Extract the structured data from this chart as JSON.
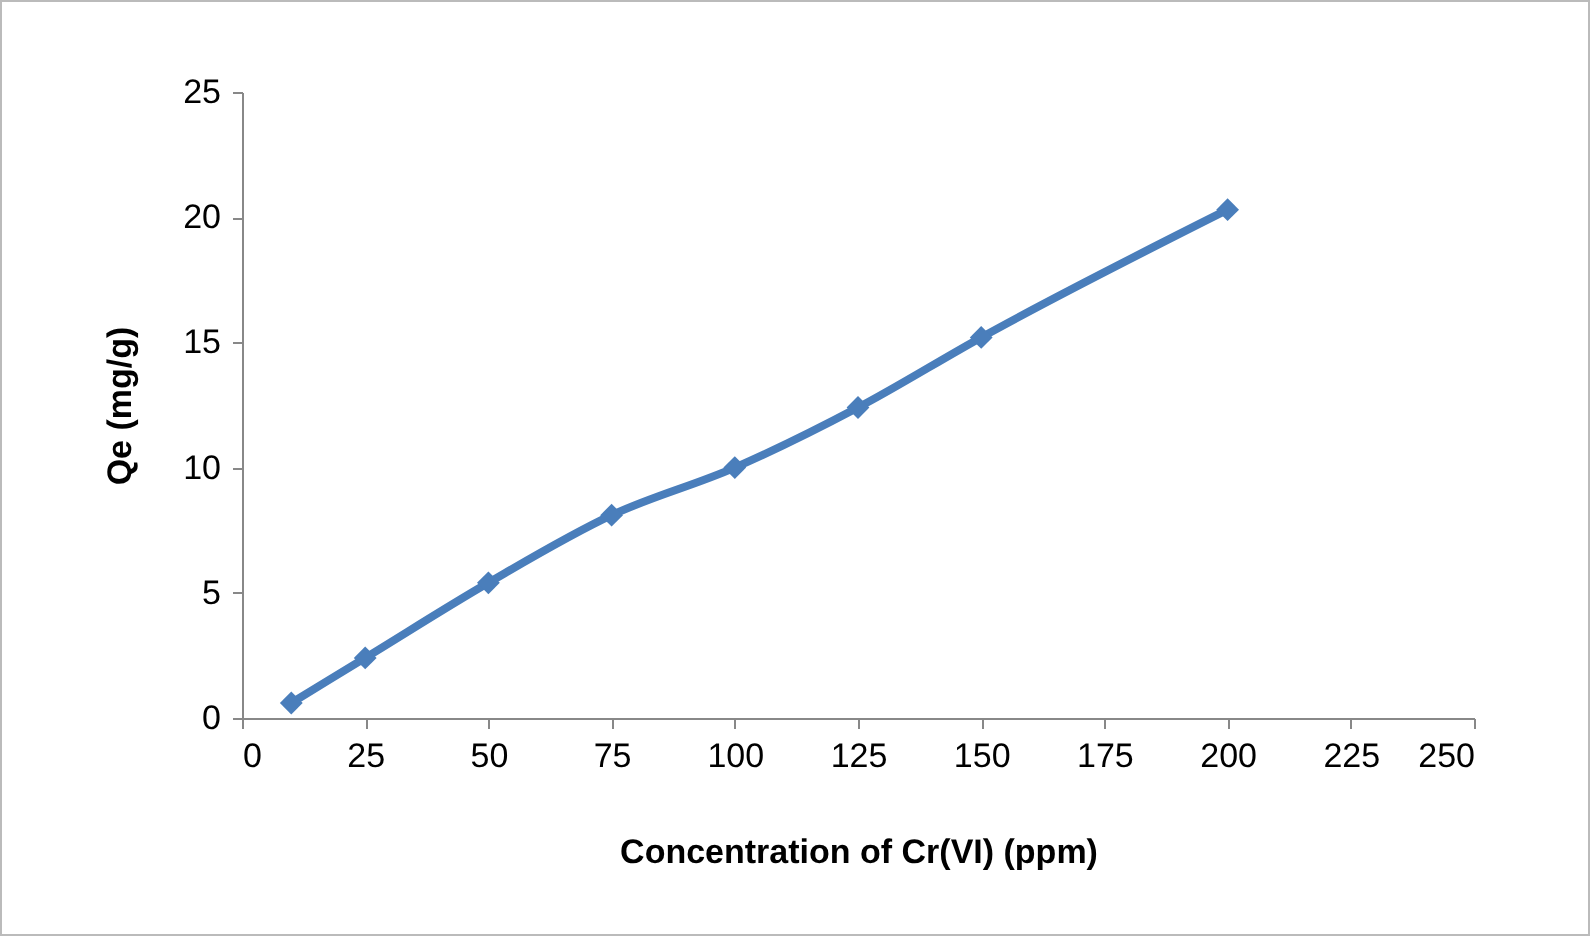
{
  "chart_data": {
    "type": "line",
    "xlabel": "Concentration of Cr(VI) (ppm)",
    "ylabel": "Qe (mg/g)",
    "x": [
      10,
      25,
      50,
      75,
      100,
      125,
      150,
      200
    ],
    "series": [
      {
        "color": "#4a7ebb",
        "values": [
          0.6,
          2.4,
          5.4,
          8.1,
          10.0,
          12.4,
          15.2,
          20.3
        ]
      }
    ],
    "xlim": [
      0,
      250
    ],
    "xticks": [
      0,
      25,
      50,
      75,
      100,
      125,
      150,
      175,
      200,
      225,
      250
    ],
    "ylim": [
      0,
      25
    ],
    "yticks": [
      0,
      5,
      10,
      15,
      20,
      25
    ],
    "grid": false,
    "marker": "diamond",
    "line_style": "solid"
  }
}
